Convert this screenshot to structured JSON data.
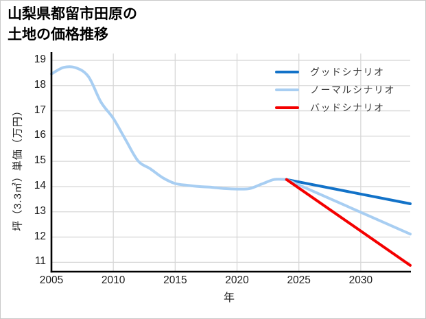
{
  "card": {
    "background": "#ffffff",
    "border_color": "#c9c9c9"
  },
  "title": {
    "line1": "山梨県都留市田原の",
    "line2": "土地の価格推移"
  },
  "chart_data": {
    "type": "line",
    "title": "山梨県都留市田原の土地の価格推移",
    "xlabel": "年",
    "ylabel": "坪（3.3㎡）単価（万円）",
    "x_ticks": [
      2005,
      2010,
      2015,
      2020,
      2025,
      2030
    ],
    "y_ticks": [
      11,
      12,
      13,
      14,
      15,
      16,
      17,
      18,
      19
    ],
    "xlim": [
      2005,
      2034
    ],
    "ylim": [
      10.63,
      19.27
    ],
    "grid": true,
    "grid_color": "#d7d7d7",
    "axis_color": "#000000",
    "legend_position": "top-right",
    "series": [
      {
        "key": "history",
        "name": "",
        "in_legend": false,
        "smooth": true,
        "color": "#a8cef2",
        "x": [
          2005,
          2006,
          2007,
          2008,
          2009,
          2010,
          2011,
          2012,
          2013,
          2014,
          2015,
          2016,
          2017,
          2018,
          2019,
          2020,
          2021,
          2022,
          2023,
          2024
        ],
        "values": [
          18.46,
          18.72,
          18.7,
          18.35,
          17.35,
          16.7,
          15.85,
          15.02,
          14.7,
          14.35,
          14.12,
          14.05,
          14.0,
          13.97,
          13.92,
          13.9,
          13.92,
          14.1,
          14.28,
          14.28
        ]
      },
      {
        "key": "good-scenario",
        "name": "グッドシナリオ",
        "in_legend": true,
        "smooth": false,
        "color": "#1272c8",
        "x": [
          2024,
          2034
        ],
        "values": [
          14.28,
          13.32
        ]
      },
      {
        "key": "normal-scenario",
        "name": "ノーマルシナリオ",
        "in_legend": true,
        "smooth": false,
        "color": "#a8cef2",
        "x": [
          2024,
          2034
        ],
        "values": [
          14.28,
          12.12
        ]
      },
      {
        "key": "bad-scenario",
        "name": "バッドシナリオ",
        "in_legend": true,
        "smooth": false,
        "color": "#f40000",
        "x": [
          2024,
          2034
        ],
        "values": [
          14.28,
          10.88
        ]
      }
    ]
  }
}
